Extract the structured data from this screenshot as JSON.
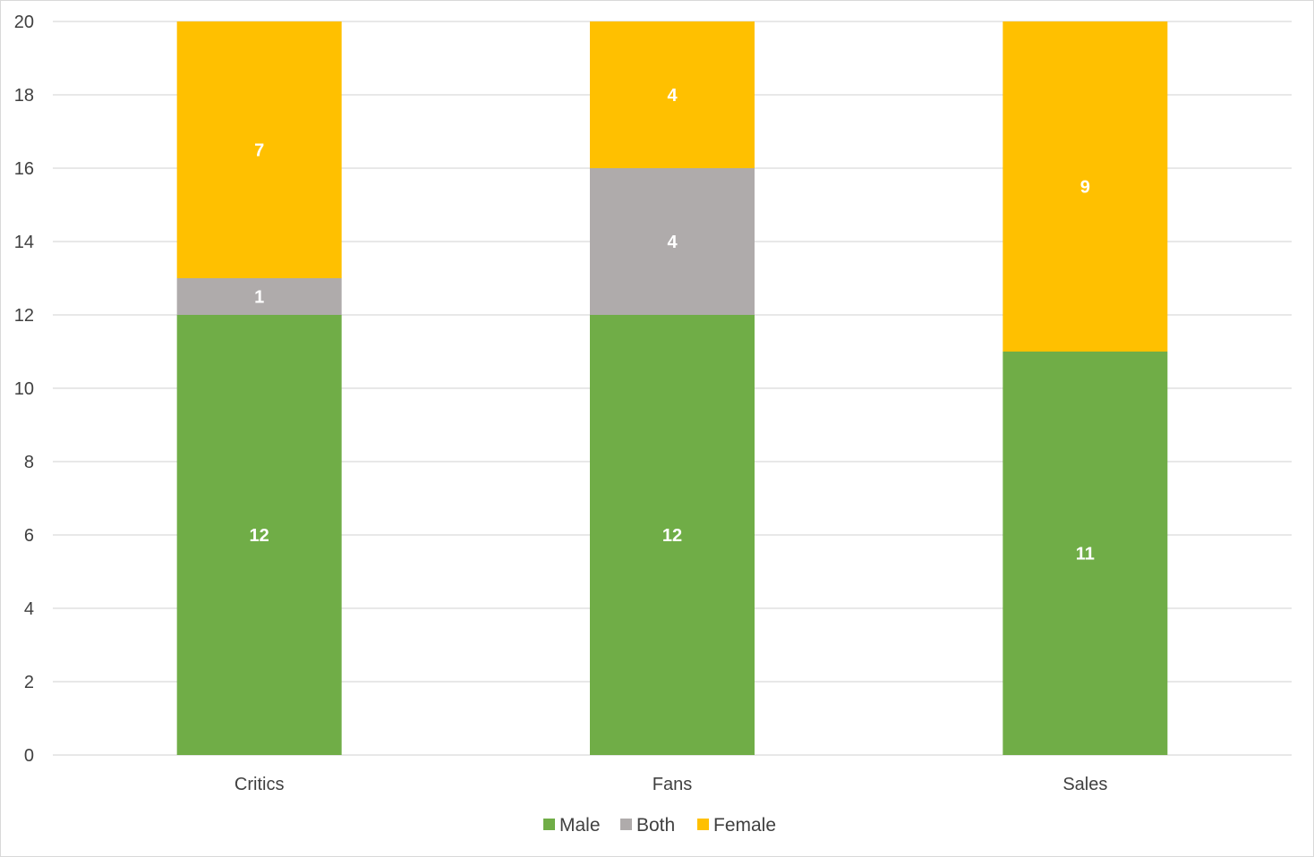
{
  "chart_data": {
    "type": "bar",
    "stacked": true,
    "categories": [
      "Critics",
      "Fans",
      "Sales"
    ],
    "series": [
      {
        "name": "Male",
        "values": [
          12,
          12,
          11
        ],
        "color": "#70ad47"
      },
      {
        "name": "Both",
        "values": [
          1,
          4,
          0
        ],
        "color": "#afabab"
      },
      {
        "name": "Female",
        "values": [
          7,
          4,
          9
        ],
        "color": "#ffc000"
      }
    ],
    "yticks": [
      "0",
      "2",
      "4",
      "6",
      "8",
      "10",
      "12",
      "14",
      "16",
      "18",
      "20"
    ],
    "ylim": [
      0,
      20
    ],
    "grid": true,
    "legend_position": "bottom",
    "title": "",
    "xlabel": "",
    "ylabel": ""
  }
}
